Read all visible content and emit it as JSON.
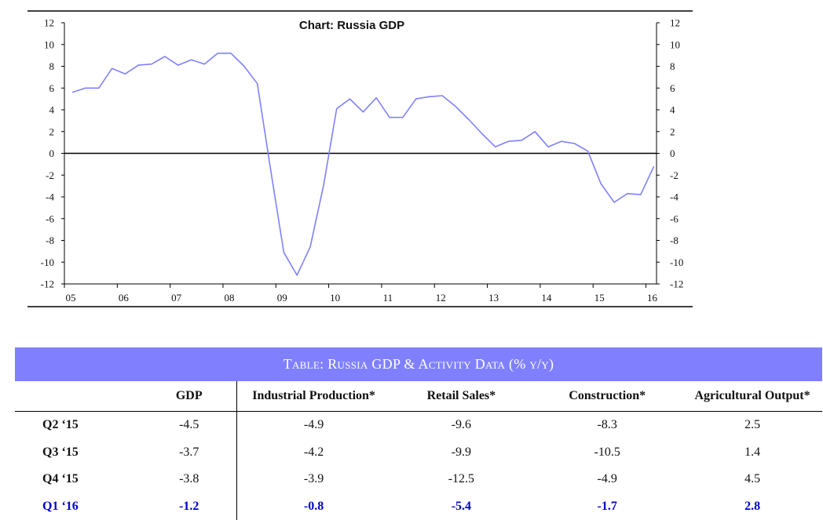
{
  "chart_data": {
    "type": "line",
    "title": "Chart: Russia GDP",
    "xlabel": "",
    "ylabel": "",
    "ylim": [
      -12,
      12
    ],
    "yticks": [
      12,
      10,
      8,
      6,
      4,
      2,
      0,
      -2,
      -4,
      -6,
      -8,
      -10,
      -12
    ],
    "xticks": [
      "05",
      "06",
      "07",
      "08",
      "09",
      "10",
      "11",
      "12",
      "13",
      "14",
      "15",
      "16"
    ],
    "grid": false,
    "color": "#8080ff",
    "series": [
      {
        "x": [
          2005.15,
          2005.4,
          2005.65,
          2005.9,
          2006.15,
          2006.4,
          2006.65,
          2006.9,
          2007.15,
          2007.4,
          2007.65,
          2007.9,
          2008.15,
          2008.4,
          2008.65,
          2008.9,
          2009.15,
          2009.4,
          2009.65,
          2009.9,
          2010.15,
          2010.4,
          2010.65,
          2010.9,
          2011.15,
          2011.4,
          2011.65,
          2011.9,
          2012.15,
          2012.4,
          2012.65,
          2012.9,
          2013.15,
          2013.4,
          2013.65,
          2013.9,
          2014.15,
          2014.4,
          2014.65,
          2014.9,
          2015.15,
          2015.4,
          2015.65,
          2015.9,
          2016.15
        ],
        "values": [
          5.6,
          6.0,
          6.0,
          7.8,
          7.3,
          8.1,
          8.2,
          8.9,
          8.1,
          8.6,
          8.2,
          9.2,
          9.2,
          8.0,
          6.4,
          -1.5,
          -9.1,
          -11.2,
          -8.6,
          -3.0,
          4.1,
          5.0,
          3.8,
          5.1,
          3.3,
          3.3,
          5.0,
          5.2,
          5.3,
          4.3,
          3.1,
          1.8,
          0.6,
          1.1,
          1.2,
          2.0,
          0.6,
          1.1,
          0.9,
          0.2,
          -2.8,
          -4.5,
          -3.7,
          -3.8,
          -1.2
        ]
      }
    ]
  },
  "table": {
    "title": "Table: Russia GDP & Activity Data (% y/y)",
    "headers": [
      "",
      "GDP",
      "Industrial Production*",
      "Retail Sales*",
      "Construction*",
      "Agricultural Output*"
    ],
    "rows": [
      {
        "label": "Q2 ‘15",
        "values": [
          "-4.5",
          "-4.9",
          "-9.6",
          "-8.3",
          "2.5"
        ]
      },
      {
        "label": "Q3 ‘15",
        "values": [
          "-3.7",
          "-4.2",
          "-9.9",
          "-10.5",
          "1.4"
        ]
      },
      {
        "label": "Q4 ‘15",
        "values": [
          "-3.8",
          "-3.9",
          "-12.5",
          "-4.9",
          "4.5"
        ]
      },
      {
        "label": "Q1 ‘16",
        "values": [
          "-1.2",
          "-0.8",
          "-5.4",
          "-1.7",
          "2.8"
        ]
      }
    ],
    "highlight_color": "#0000cc",
    "title_bg": "#8080ff"
  }
}
